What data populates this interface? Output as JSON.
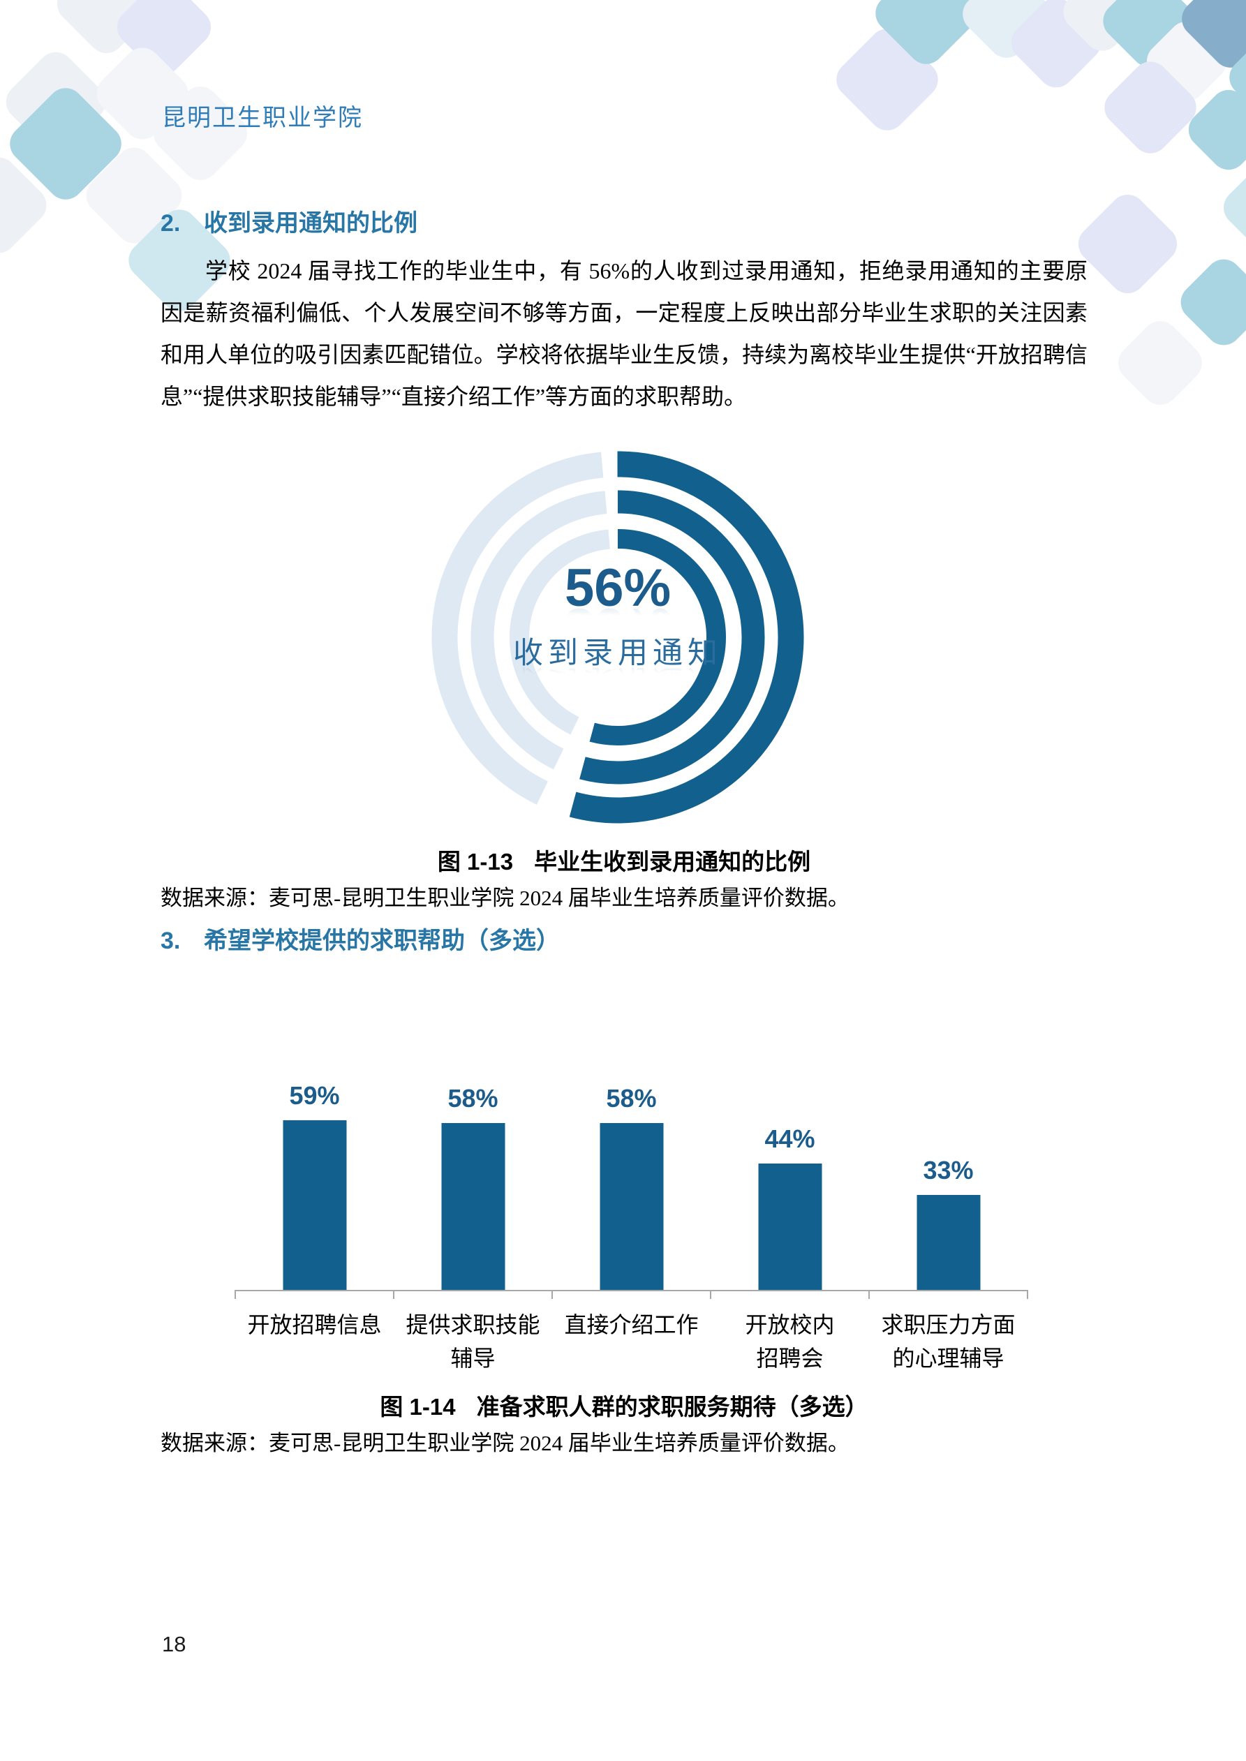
{
  "header": {
    "school_name": "昆明卫生职业学院"
  },
  "page_number": "18",
  "section2": {
    "number": "2.",
    "title": "收到录用通知的比例",
    "paragraph": "学校 2024 届寻找工作的毕业生中，有 56%的人收到过录用通知，拒绝录用通知的主要原因是薪资福利偏低、个人发展空间不够等方面，一定程度上反映出部分毕业生求职的关注因素和用人单位的吸引因素匹配错位。学校将依据毕业生反馈，持续为离校毕业生提供“开放招聘信息”“提供求职技能辅导”“直接介绍工作”等方面的求职帮助。"
  },
  "figure13": {
    "caption_label": "图 1-13",
    "caption_title": "毕业生收到录用通知的比例",
    "source": "数据来源：麦可思-昆明卫生职业学院 2024 届毕业生培养质量评价数据。"
  },
  "section3": {
    "number": "3.",
    "title": "希望学校提供的求职帮助（多选）"
  },
  "figure14": {
    "caption_label": "图 1-14",
    "caption_title": "准备求职人群的求职服务期待（多选）",
    "source": "数据来源：麦可思-昆明卫生职业学院 2024 届毕业生培养质量评价数据。"
  },
  "chart_data": [
    {
      "type": "donut",
      "title": "毕业生收到录用通知的比例",
      "value_pct": 56,
      "center_label": "56%",
      "center_sublabel": "收到录用通知",
      "rings": 3,
      "legend_position": "none"
    },
    {
      "type": "bar",
      "title": "准备求职人群的求职服务期待（多选）",
      "categories": [
        "开放招聘信息",
        "提供求职技能\n辅导",
        "直接介绍工作",
        "开放校内\n招聘会",
        "求职压力方面\n的心理辅导"
      ],
      "values": [
        59,
        58,
        58,
        44,
        33
      ],
      "value_labels": [
        "59%",
        "58%",
        "58%",
        "44%",
        "33%"
      ],
      "xlabel": "",
      "ylabel": "",
      "ylim": [
        0,
        85
      ],
      "grid": false,
      "legend_position": "none"
    }
  ],
  "colors": {
    "school": "#2E7CB8",
    "heading": "#2776A6",
    "chart_dark": "#12608E",
    "value_label": "#1C5C8C",
    "donut_sub": "#2B6C9F",
    "ring_light": "#DEE9F3",
    "axis": "#A8A8A8",
    "teal": "#A9D4E1",
    "pale_teal": "#CFE7EF",
    "ice": "#E3EEF5",
    "periwinkle": "#E2E6F6",
    "pale": "#EDF0F4",
    "paler": "#F3F5F8",
    "steel": "#86AECB"
  }
}
